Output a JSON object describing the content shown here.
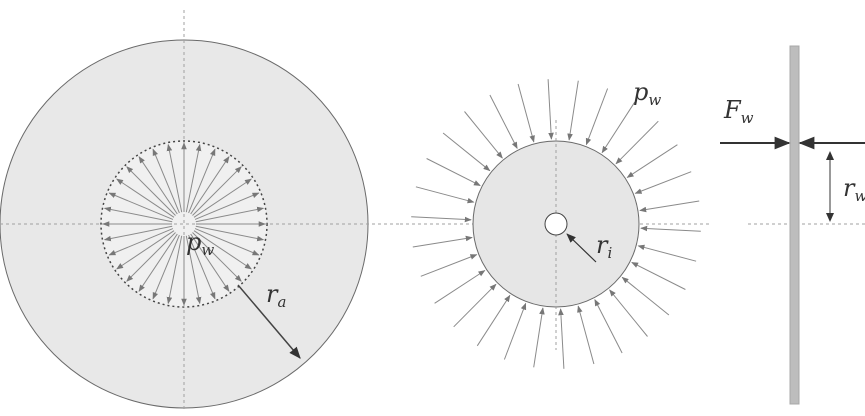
{
  "labels": {
    "pw_left": "p",
    "pw_left_sub": "w",
    "ra": "r",
    "ra_sub": "a",
    "pw_right": "p",
    "pw_right_sub": "w",
    "ri": "r",
    "ri_sub": "i",
    "fw": "F",
    "fw_sub": "w",
    "rw": "r",
    "rw_sub": "w"
  },
  "colors": {
    "fill": "#e6e6e6",
    "outline": "#6a6a6a",
    "arrow": "#777777",
    "dark": "#333333",
    "axis": "#a0a0a0"
  }
}
